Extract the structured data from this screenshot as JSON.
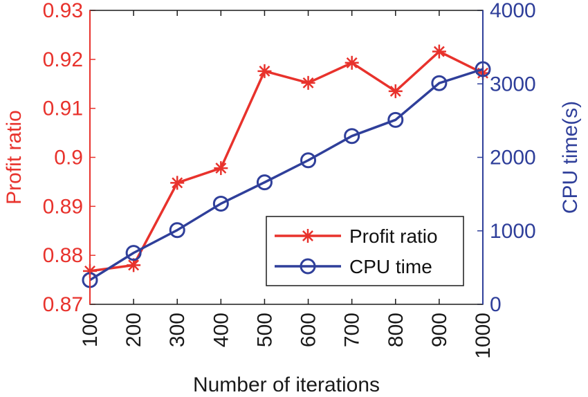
{
  "chart_data": {
    "type": "line",
    "x": [
      100,
      200,
      300,
      400,
      500,
      600,
      700,
      800,
      900,
      1000
    ],
    "xlabel": "Number of iterations",
    "xlim": [
      100,
      1000
    ],
    "series": [
      {
        "name": "Profit ratio",
        "axis": "left",
        "color": "#e8322c",
        "marker": "asterisk",
        "values": [
          0.8768,
          0.878,
          0.8948,
          0.8978,
          0.9176,
          0.9152,
          0.9193,
          0.9135,
          0.9216,
          0.9172
        ]
      },
      {
        "name": "CPU time",
        "axis": "right",
        "color": "#2f3f9a",
        "marker": "circle",
        "values": [
          330,
          700,
          1010,
          1370,
          1660,
          1960,
          2290,
          2510,
          3010,
          3200
        ]
      }
    ],
    "yleft": {
      "label": "Profit ratio",
      "color": "#e8322c",
      "lim": [
        0.87,
        0.93
      ],
      "ticks": [
        0.87,
        0.88,
        0.89,
        0.9,
        0.91,
        0.92,
        0.93
      ],
      "tick_labels": [
        "0.87",
        "0.88",
        "0.89",
        "0.9",
        "0.91",
        "0.92",
        "0.93"
      ]
    },
    "yright": {
      "label": "CPU time(s)",
      "color": "#2f3f9a",
      "lim": [
        0,
        4000
      ],
      "ticks": [
        0,
        1000,
        2000,
        3000,
        4000
      ],
      "tick_labels": [
        "0",
        "1000",
        "2000",
        "3000",
        "4000"
      ]
    },
    "xticks": [
      100,
      200,
      300,
      400,
      500,
      600,
      700,
      800,
      900,
      1000
    ],
    "xtick_labels": [
      "100",
      "200",
      "300",
      "400",
      "500",
      "600",
      "700",
      "800",
      "900",
      "1000"
    ],
    "legend": {
      "position": "lower-right",
      "entries": [
        "Profit ratio",
        "CPU time"
      ]
    },
    "grid": false
  }
}
